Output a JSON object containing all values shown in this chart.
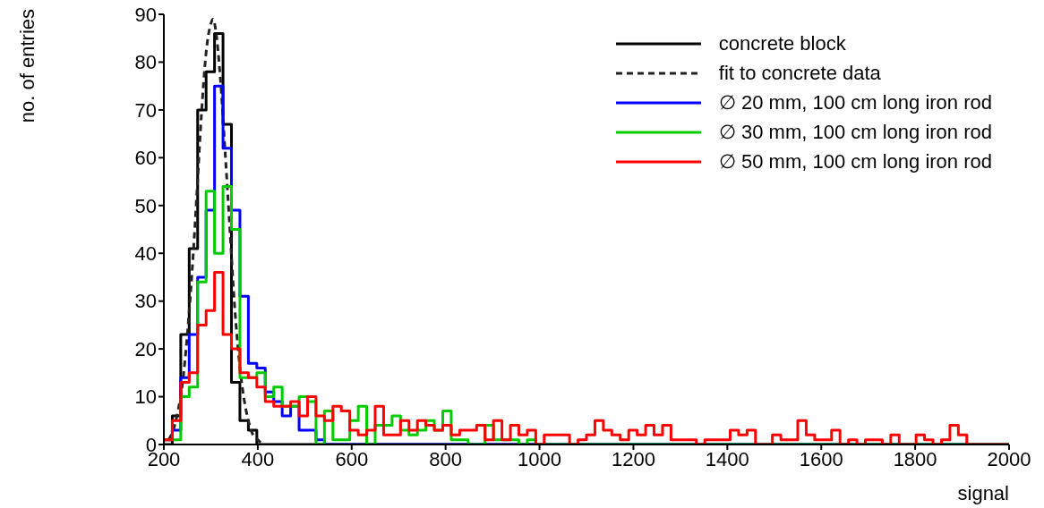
{
  "chart_data": {
    "type": "histogram",
    "xlabel": "signal",
    "ylabel": "no. of entries",
    "series": [
      {
        "name": "concrete block",
        "color": "#000000",
        "line_style": "solid",
        "bins": [
          200,
          218,
          236,
          254,
          272,
          290,
          308,
          326,
          344,
          362,
          380,
          398,
          416,
          434,
          452,
          470,
          488,
          506,
          524,
          542,
          560,
          578,
          596,
          614,
          632,
          650,
          668,
          686,
          704,
          722,
          740,
          758,
          776,
          794,
          812,
          830,
          848,
          866,
          884,
          902,
          920,
          938,
          956,
          974,
          992,
          1010,
          1028,
          1046,
          1064,
          1082,
          1100,
          1118,
          1136,
          1154,
          1172,
          1190,
          1208,
          1226,
          1244,
          1262,
          1280,
          1298,
          1316,
          1334,
          1352,
          1370,
          1388,
          1406,
          1424,
          1442,
          1460,
          1478,
          1496,
          1514,
          1532,
          1550,
          1568,
          1586,
          1604,
          1622,
          1640,
          1658,
          1676,
          1694,
          1712,
          1730,
          1748,
          1766,
          1784,
          1802,
          1820,
          1838,
          1856,
          1874,
          1892,
          1910,
          1928,
          1946,
          1964,
          1982,
          2000
        ],
        "values": [
          0,
          6,
          23,
          41,
          70,
          78,
          86,
          67,
          13,
          5,
          3,
          0,
          0,
          0,
          0,
          0,
          0,
          0,
          0,
          0,
          0,
          0,
          0,
          0,
          0,
          0,
          0,
          0,
          0,
          0,
          0,
          0,
          0,
          0,
          0,
          0,
          0,
          0,
          0,
          0,
          0,
          0,
          0,
          0,
          0,
          0,
          0,
          0,
          0,
          0,
          0,
          0,
          0,
          0,
          0,
          0,
          0,
          0,
          0,
          0,
          0,
          0,
          0,
          0,
          0,
          0,
          0,
          0,
          0,
          0,
          0,
          0,
          0,
          0,
          0,
          0,
          0,
          0,
          0,
          0,
          0,
          0,
          0,
          0,
          0,
          0,
          0,
          0,
          0,
          0,
          0,
          0,
          0,
          0,
          0,
          0,
          0,
          0,
          0,
          0
        ]
      },
      {
        "name": "fit to concrete data",
        "type": "line",
        "color": "#222222",
        "line_style": "dashed",
        "x": [
          210,
          220,
          230,
          240,
          250,
          260,
          270,
          280,
          290,
          300,
          305,
          310,
          320,
          330,
          340,
          350,
          360,
          370,
          380,
          390,
          400,
          410
        ],
        "values": [
          1,
          3,
          7,
          13,
          23,
          36,
          52,
          69,
          82,
          88,
          89,
          87,
          77,
          62,
          46,
          30,
          18,
          10,
          5,
          2,
          1,
          0
        ]
      },
      {
        "name": "∅ 20 mm, 100 cm long iron rod",
        "color": "#0000ff",
        "line_style": "solid",
        "bins": [
          200,
          218,
          236,
          254,
          272,
          290,
          308,
          326,
          344,
          362,
          380,
          398,
          416,
          434,
          452,
          470,
          488,
          506,
          524,
          542,
          560,
          578,
          596,
          614,
          632,
          650,
          668,
          686,
          704,
          722,
          740,
          758,
          776,
          794,
          812,
          830,
          848,
          866,
          884,
          902,
          920,
          938,
          956,
          974,
          992,
          1010,
          1028,
          1046,
          1064,
          1082,
          1100,
          1118,
          1136,
          1154,
          1172,
          1190,
          1208,
          1226,
          1244,
          1262,
          1280,
          1298,
          1316,
          1334,
          1352,
          1370,
          1388,
          1406,
          1424,
          1442,
          1460,
          1478,
          1496,
          1514,
          1532,
          1550,
          1568,
          1586,
          1604,
          1622,
          1640,
          1658,
          1676,
          1694,
          1712,
          1730,
          1748,
          1766,
          1784,
          1802,
          1820,
          1838,
          1856,
          1874,
          1892,
          1910,
          1928,
          1946,
          1964,
          1982,
          2000
        ],
        "values": [
          1,
          3,
          14,
          23,
          35,
          49,
          75,
          62,
          49,
          31,
          17,
          16,
          11,
          9,
          6,
          8,
          3,
          3,
          1,
          0,
          0,
          0,
          0,
          0,
          0,
          0,
          0,
          0,
          0,
          0,
          0,
          0,
          0,
          0,
          0,
          0,
          0,
          0,
          0,
          0,
          0,
          0,
          0,
          0,
          0,
          0,
          0,
          0,
          0,
          0,
          0,
          0,
          0,
          0,
          0,
          0,
          0,
          0,
          0,
          0,
          0,
          0,
          0,
          0,
          0,
          0,
          0,
          0,
          0,
          0,
          0,
          0,
          0,
          0,
          0,
          0,
          0,
          0,
          0,
          0,
          0,
          0,
          0,
          0,
          0,
          0,
          0,
          0,
          0,
          0,
          0,
          0,
          0,
          0,
          0,
          0,
          0,
          0,
          0,
          0
        ]
      },
      {
        "name": "∅ 30 mm, 100 cm long iron rod",
        "color": "#00cc00",
        "line_style": "solid",
        "bins": [
          200,
          218,
          236,
          254,
          272,
          290,
          308,
          326,
          344,
          362,
          380,
          398,
          416,
          434,
          452,
          470,
          488,
          506,
          524,
          542,
          560,
          578,
          596,
          614,
          632,
          650,
          668,
          686,
          704,
          722,
          740,
          758,
          776,
          794,
          812,
          830,
          848,
          866,
          884,
          902,
          920,
          938,
          956,
          974,
          992,
          1010,
          1028,
          1046,
          1064,
          1082,
          1100,
          1118,
          1136,
          1154,
          1172,
          1190,
          1208,
          1226,
          1244,
          1262,
          1280,
          1298,
          1316,
          1334,
          1352,
          1370,
          1388,
          1406,
          1424,
          1442,
          1460,
          1478,
          1496,
          1514,
          1532,
          1550,
          1568,
          1586,
          1604,
          1622,
          1640,
          1658,
          1676,
          1694,
          1712,
          1730,
          1748,
          1766,
          1784,
          1802,
          1820,
          1838,
          1856,
          1874,
          1892,
          1910,
          1928,
          1946,
          1964,
          1982,
          2000
        ],
        "values": [
          1,
          1,
          10,
          12,
          34,
          53,
          40,
          54,
          45,
          14,
          14,
          15,
          10,
          12,
          8,
          8,
          10,
          9,
          0,
          7,
          1,
          1,
          5,
          8,
          0,
          4,
          4,
          6,
          3,
          2,
          3,
          5,
          3,
          7,
          1,
          1,
          0,
          0,
          4,
          1,
          1,
          1,
          0,
          1,
          0,
          0,
          0,
          0,
          0,
          0,
          0,
          0,
          0,
          0,
          0,
          0,
          0,
          0,
          0,
          0,
          0,
          0,
          0,
          0,
          0,
          0,
          0,
          0,
          0,
          0,
          0,
          0,
          0,
          0,
          0,
          0,
          0,
          0,
          0,
          0,
          0,
          0,
          0,
          0,
          0,
          0,
          0,
          0,
          0,
          0,
          0,
          0,
          0,
          0,
          0,
          0,
          0,
          0,
          0,
          0
        ]
      },
      {
        "name": "∅ 50 mm, 100 cm long iron rod",
        "color": "#ff0000",
        "line_style": "solid",
        "bins": [
          200,
          218,
          236,
          254,
          272,
          290,
          308,
          326,
          344,
          362,
          380,
          398,
          416,
          434,
          452,
          470,
          488,
          506,
          524,
          542,
          560,
          578,
          596,
          614,
          632,
          650,
          668,
          686,
          704,
          722,
          740,
          758,
          776,
          794,
          812,
          830,
          848,
          866,
          884,
          902,
          920,
          938,
          956,
          974,
          992,
          1010,
          1028,
          1046,
          1064,
          1082,
          1100,
          1118,
          1136,
          1154,
          1172,
          1190,
          1208,
          1226,
          1244,
          1262,
          1280,
          1298,
          1316,
          1334,
          1352,
          1370,
          1388,
          1406,
          1424,
          1442,
          1460,
          1478,
          1496,
          1514,
          1532,
          1550,
          1568,
          1586,
          1604,
          1622,
          1640,
          1658,
          1676,
          1694,
          1712,
          1730,
          1748,
          1766,
          1784,
          1802,
          1820,
          1838,
          1856,
          1874,
          1892,
          1910,
          1928,
          1946,
          1964,
          1982,
          2000
        ],
        "values": [
          1,
          5,
          13,
          15,
          25,
          28,
          36,
          23,
          20,
          15,
          14,
          12,
          9,
          8,
          8,
          9,
          6,
          10,
          6,
          5,
          8,
          7,
          3,
          2,
          3,
          8,
          2,
          2,
          5,
          3,
          5,
          4,
          3,
          4,
          2,
          3,
          3,
          4,
          1,
          5,
          1,
          4,
          2,
          3,
          0,
          2,
          2,
          2,
          0,
          1,
          2,
          5,
          3,
          2,
          1,
          3,
          2,
          4,
          2,
          4,
          1,
          1,
          1,
          0,
          1,
          1,
          1,
          3,
          2,
          3,
          0,
          0,
          2,
          1,
          1,
          5,
          2,
          1,
          1,
          3,
          0,
          1,
          0,
          1,
          1,
          0,
          2,
          0,
          0,
          2,
          1,
          0,
          1,
          4,
          2,
          0,
          0,
          0,
          0,
          0
        ]
      }
    ],
    "xlim": [
      200,
      2000
    ],
    "xticks": [
      200,
      400,
      600,
      800,
      1000,
      1200,
      1400,
      1600,
      1800,
      2000
    ],
    "ylim": [
      0,
      90
    ],
    "yticks": [
      0,
      10,
      20,
      30,
      40,
      50,
      60,
      70,
      80,
      90
    ],
    "legend": "top right"
  }
}
